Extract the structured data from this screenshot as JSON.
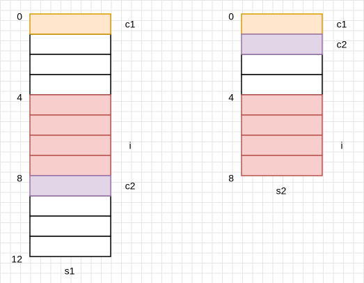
{
  "colors": {
    "char_fill": "#ffe6cc",
    "char_stroke": "#d79b00",
    "char2_fill": "#e1d5e7",
    "char2_stroke": "#9673a6",
    "int_fill": "#f8cecc",
    "int_stroke": "#b85450",
    "empty_fill": "#ffffff",
    "empty_stroke": "#000000"
  },
  "structs": [
    {
      "name": "s1",
      "cells": [
        "char",
        "empty",
        "empty",
        "empty",
        "int",
        "int",
        "int",
        "int",
        "char2",
        "empty",
        "empty",
        "empty"
      ],
      "offset_labels": [
        {
          "cell": 0,
          "text": "0"
        },
        {
          "cell": 4,
          "text": "4"
        },
        {
          "cell": 8,
          "text": "8"
        },
        {
          "cell": 12,
          "text": "12"
        }
      ],
      "field_labels": [
        {
          "cell": 0,
          "text": "c1"
        },
        {
          "cell": 6,
          "text": "i"
        },
        {
          "cell": 8,
          "text": "c2"
        }
      ]
    },
    {
      "name": "s2",
      "cells": [
        "char",
        "char2",
        "empty",
        "empty",
        "int",
        "int",
        "int",
        "int"
      ],
      "offset_labels": [
        {
          "cell": 0,
          "text": "0"
        },
        {
          "cell": 4,
          "text": "4"
        },
        {
          "cell": 8,
          "text": "8"
        }
      ],
      "field_labels": [
        {
          "cell": 0,
          "text": "c1"
        },
        {
          "cell": 1,
          "text": "c2"
        },
        {
          "cell": 6,
          "text": "i"
        }
      ]
    }
  ]
}
